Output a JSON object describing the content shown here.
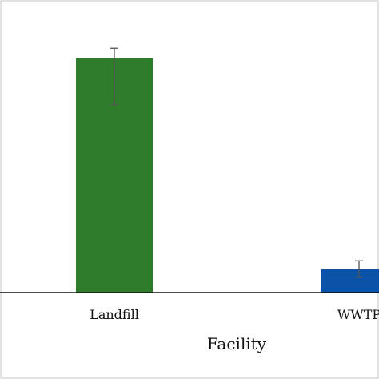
{
  "chart_data": {
    "type": "bar",
    "title": "",
    "xlabel": "Facility",
    "ylabel": "",
    "categories": [
      "Landfill",
      "WWTP"
    ],
    "series": [
      {
        "values": [
          100,
          10
        ],
        "error": [
          [
            80,
            104
          ],
          [
            6.5,
            13.5
          ]
        ],
        "colors": [
          "#2e7d2b",
          "#0b53a8"
        ]
      }
    ],
    "ylim": [
      0,
      125
    ],
    "grid": false,
    "legend": "none"
  }
}
